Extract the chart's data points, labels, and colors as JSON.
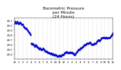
{
  "title": "Barometric Pressure\nper Minute\n(24 Hours)",
  "title_fontsize": 4.2,
  "line_color": "#0000cc",
  "marker": ".",
  "markersize": 1.2,
  "bg_color": "#ffffff",
  "grid_color": "#bbbbbb",
  "tick_fontsize": 2.8,
  "ylim": [
    29.3,
    30.15
  ],
  "yticks": [
    29.4,
    29.5,
    29.6,
    29.7,
    29.8,
    29.9,
    30.0,
    30.1
  ],
  "ytick_labels": [
    "29.4",
    "29.5",
    "29.6",
    "29.7",
    "29.8",
    "29.9",
    "30.0",
    "30.1"
  ],
  "xlim": [
    0,
    1440
  ],
  "xtick_positions": [
    0,
    60,
    120,
    180,
    240,
    300,
    360,
    420,
    480,
    540,
    600,
    660,
    720,
    780,
    840,
    900,
    960,
    1020,
    1080,
    1140,
    1200,
    1260,
    1320,
    1380,
    1440
  ],
  "xtick_labels": [
    "12",
    "1",
    "2",
    "3",
    "4",
    "5",
    "6",
    "7",
    "8",
    "9",
    "10",
    "11",
    "12",
    "1",
    "2",
    "3",
    "4",
    "5",
    "6",
    "7",
    "8",
    "9",
    "10",
    "11",
    "12"
  ],
  "pressure_data": [
    [
      0,
      30.05
    ],
    [
      5,
      30.04
    ],
    [
      10,
      30.06
    ],
    [
      15,
      30.07
    ],
    [
      20,
      30.05
    ],
    [
      25,
      30.03
    ],
    [
      30,
      30.04
    ],
    [
      35,
      30.06
    ],
    [
      40,
      30.07
    ],
    [
      45,
      30.06
    ],
    [
      50,
      30.05
    ],
    [
      55,
      30.04
    ],
    [
      60,
      30.03
    ],
    [
      65,
      30.02
    ],
    [
      70,
      30.04
    ],
    [
      75,
      30.05
    ],
    [
      80,
      30.06
    ],
    [
      85,
      30.05
    ],
    [
      90,
      30.04
    ],
    [
      95,
      30.03
    ],
    [
      100,
      30.02
    ],
    [
      105,
      30.01
    ],
    [
      110,
      30.0
    ],
    [
      115,
      30.01
    ],
    [
      120,
      30.02
    ],
    [
      125,
      30.0
    ],
    [
      130,
      29.98
    ],
    [
      135,
      29.97
    ],
    [
      140,
      29.96
    ],
    [
      145,
      29.95
    ],
    [
      150,
      29.94
    ],
    [
      155,
      29.93
    ],
    [
      160,
      29.92
    ],
    [
      165,
      29.93
    ],
    [
      170,
      29.94
    ],
    [
      175,
      29.93
    ],
    [
      180,
      29.91
    ],
    [
      185,
      29.9
    ],
    [
      190,
      29.89
    ],
    [
      195,
      29.88
    ],
    [
      200,
      29.87
    ],
    [
      205,
      29.86
    ],
    [
      210,
      29.85
    ],
    [
      215,
      29.84
    ],
    [
      220,
      29.83
    ],
    [
      225,
      29.82
    ],
    [
      230,
      29.81
    ],
    [
      235,
      29.8
    ],
    [
      240,
      29.63
    ],
    [
      245,
      29.62
    ],
    [
      250,
      29.61
    ],
    [
      255,
      29.6
    ],
    [
      260,
      29.61
    ],
    [
      265,
      29.62
    ],
    [
      270,
      29.61
    ],
    [
      275,
      29.6
    ],
    [
      280,
      29.59
    ],
    [
      285,
      29.58
    ],
    [
      290,
      29.57
    ],
    [
      295,
      29.56
    ],
    [
      300,
      29.57
    ],
    [
      305,
      29.58
    ],
    [
      310,
      29.59
    ],
    [
      315,
      29.58
    ],
    [
      320,
      29.57
    ],
    [
      325,
      29.56
    ],
    [
      330,
      29.55
    ],
    [
      335,
      29.54
    ],
    [
      340,
      29.55
    ],
    [
      345,
      29.54
    ],
    [
      350,
      29.53
    ],
    [
      355,
      29.52
    ],
    [
      360,
      29.51
    ],
    [
      365,
      29.5
    ],
    [
      370,
      29.52
    ],
    [
      375,
      29.53
    ],
    [
      380,
      29.52
    ],
    [
      385,
      29.51
    ],
    [
      390,
      29.5
    ],
    [
      395,
      29.49
    ],
    [
      400,
      29.48
    ],
    [
      405,
      29.49
    ],
    [
      410,
      29.5
    ],
    [
      415,
      29.51
    ],
    [
      420,
      29.52
    ],
    [
      425,
      29.51
    ],
    [
      430,
      29.5
    ],
    [
      435,
      29.49
    ],
    [
      440,
      29.48
    ],
    [
      445,
      29.47
    ],
    [
      450,
      29.46
    ],
    [
      455,
      29.45
    ],
    [
      460,
      29.46
    ],
    [
      465,
      29.47
    ],
    [
      470,
      29.46
    ],
    [
      475,
      29.45
    ],
    [
      480,
      29.44
    ],
    [
      485,
      29.43
    ],
    [
      490,
      29.42
    ],
    [
      495,
      29.43
    ],
    [
      500,
      29.44
    ],
    [
      505,
      29.43
    ],
    [
      510,
      29.42
    ],
    [
      515,
      29.41
    ],
    [
      520,
      29.42
    ],
    [
      525,
      29.41
    ],
    [
      530,
      29.4
    ],
    [
      535,
      29.41
    ],
    [
      540,
      29.42
    ],
    [
      545,
      29.41
    ],
    [
      550,
      29.4
    ],
    [
      555,
      29.39
    ],
    [
      560,
      29.4
    ],
    [
      565,
      29.41
    ],
    [
      570,
      29.4
    ],
    [
      575,
      29.39
    ],
    [
      580,
      29.38
    ],
    [
      585,
      29.37
    ],
    [
      590,
      29.38
    ],
    [
      595,
      29.39
    ],
    [
      600,
      29.4
    ],
    [
      605,
      29.39
    ],
    [
      610,
      29.38
    ],
    [
      615,
      29.37
    ],
    [
      620,
      29.36
    ],
    [
      625,
      29.35
    ],
    [
      630,
      29.36
    ],
    [
      635,
      29.37
    ],
    [
      640,
      29.36
    ],
    [
      645,
      29.35
    ],
    [
      650,
      29.36
    ],
    [
      655,
      29.37
    ],
    [
      660,
      29.38
    ],
    [
      665,
      29.37
    ],
    [
      670,
      29.36
    ],
    [
      675,
      29.35
    ],
    [
      680,
      29.36
    ],
    [
      685,
      29.37
    ],
    [
      690,
      29.38
    ],
    [
      695,
      29.39
    ],
    [
      700,
      29.4
    ],
    [
      705,
      29.39
    ],
    [
      710,
      29.38
    ],
    [
      715,
      29.39
    ],
    [
      720,
      29.4
    ],
    [
      725,
      29.41
    ],
    [
      730,
      29.42
    ],
    [
      735,
      29.43
    ],
    [
      740,
      29.44
    ],
    [
      745,
      29.43
    ],
    [
      750,
      29.44
    ],
    [
      755,
      29.45
    ],
    [
      760,
      29.44
    ],
    [
      765,
      29.43
    ],
    [
      770,
      29.44
    ],
    [
      775,
      29.43
    ],
    [
      780,
      29.44
    ],
    [
      785,
      29.43
    ],
    [
      790,
      29.42
    ],
    [
      795,
      29.43
    ],
    [
      800,
      29.44
    ],
    [
      805,
      29.43
    ],
    [
      810,
      29.44
    ],
    [
      815,
      29.43
    ],
    [
      820,
      29.44
    ],
    [
      825,
      29.43
    ],
    [
      830,
      29.44
    ],
    [
      835,
      29.43
    ],
    [
      840,
      29.44
    ],
    [
      845,
      29.43
    ],
    [
      850,
      29.42
    ],
    [
      855,
      29.41
    ],
    [
      860,
      29.42
    ],
    [
      865,
      29.41
    ],
    [
      870,
      29.4
    ],
    [
      875,
      29.39
    ],
    [
      880,
      29.38
    ],
    [
      885,
      29.39
    ],
    [
      890,
      29.4
    ],
    [
      895,
      29.41
    ],
    [
      900,
      29.42
    ],
    [
      905,
      29.43
    ],
    [
      910,
      29.44
    ],
    [
      915,
      29.45
    ],
    [
      920,
      29.46
    ],
    [
      925,
      29.47
    ],
    [
      930,
      29.48
    ],
    [
      935,
      29.49
    ],
    [
      940,
      29.5
    ],
    [
      945,
      29.49
    ],
    [
      950,
      29.48
    ],
    [
      955,
      29.5
    ],
    [
      960,
      29.52
    ],
    [
      965,
      29.53
    ],
    [
      970,
      29.52
    ],
    [
      975,
      29.51
    ],
    [
      980,
      29.53
    ],
    [
      985,
      29.54
    ],
    [
      990,
      29.55
    ],
    [
      995,
      29.54
    ],
    [
      1000,
      29.55
    ],
    [
      1005,
      29.56
    ],
    [
      1010,
      29.57
    ],
    [
      1015,
      29.58
    ],
    [
      1020,
      29.59
    ],
    [
      1025,
      29.6
    ],
    [
      1030,
      29.59
    ],
    [
      1035,
      29.58
    ],
    [
      1040,
      29.59
    ],
    [
      1045,
      29.6
    ],
    [
      1050,
      29.61
    ],
    [
      1055,
      29.62
    ],
    [
      1060,
      29.63
    ],
    [
      1065,
      29.62
    ],
    [
      1070,
      29.61
    ],
    [
      1075,
      29.62
    ],
    [
      1080,
      29.63
    ],
    [
      1085,
      29.62
    ],
    [
      1090,
      29.63
    ],
    [
      1095,
      29.64
    ],
    [
      1100,
      29.65
    ],
    [
      1105,
      29.64
    ],
    [
      1110,
      29.63
    ],
    [
      1115,
      29.62
    ],
    [
      1120,
      29.61
    ],
    [
      1125,
      29.6
    ],
    [
      1130,
      29.59
    ],
    [
      1135,
      29.6
    ],
    [
      1140,
      29.61
    ],
    [
      1145,
      29.6
    ],
    [
      1150,
      29.59
    ],
    [
      1155,
      29.6
    ],
    [
      1160,
      29.61
    ],
    [
      1165,
      29.62
    ],
    [
      1170,
      29.63
    ],
    [
      1175,
      29.62
    ],
    [
      1180,
      29.61
    ],
    [
      1185,
      29.62
    ],
    [
      1190,
      29.63
    ],
    [
      1195,
      29.64
    ],
    [
      1200,
      29.65
    ],
    [
      1205,
      29.66
    ],
    [
      1210,
      29.67
    ],
    [
      1215,
      29.68
    ],
    [
      1220,
      29.69
    ],
    [
      1225,
      29.7
    ],
    [
      1230,
      29.69
    ],
    [
      1235,
      29.68
    ],
    [
      1240,
      29.67
    ],
    [
      1245,
      29.68
    ],
    [
      1250,
      29.69
    ],
    [
      1255,
      29.7
    ],
    [
      1260,
      29.71
    ],
    [
      1265,
      29.72
    ],
    [
      1270,
      29.73
    ],
    [
      1275,
      29.74
    ],
    [
      1280,
      29.73
    ],
    [
      1285,
      29.74
    ],
    [
      1290,
      29.73
    ],
    [
      1295,
      29.74
    ],
    [
      1300,
      29.73
    ],
    [
      1305,
      29.74
    ],
    [
      1310,
      29.75
    ],
    [
      1315,
      29.74
    ],
    [
      1320,
      29.73
    ],
    [
      1325,
      29.72
    ],
    [
      1330,
      29.73
    ],
    [
      1335,
      29.74
    ],
    [
      1340,
      29.75
    ],
    [
      1345,
      29.74
    ],
    [
      1350,
      29.73
    ],
    [
      1355,
      29.72
    ],
    [
      1360,
      29.73
    ],
    [
      1365,
      29.74
    ],
    [
      1370,
      29.73
    ],
    [
      1375,
      29.74
    ],
    [
      1380,
      29.73
    ],
    [
      1385,
      29.74
    ],
    [
      1390,
      29.73
    ],
    [
      1395,
      29.74
    ],
    [
      1400,
      29.75
    ],
    [
      1405,
      29.76
    ],
    [
      1410,
      29.77
    ],
    [
      1415,
      29.78
    ],
    [
      1420,
      29.79
    ],
    [
      1425,
      29.8
    ],
    [
      1430,
      29.81
    ],
    [
      1435,
      29.82
    ],
    [
      1440,
      29.83
    ]
  ]
}
